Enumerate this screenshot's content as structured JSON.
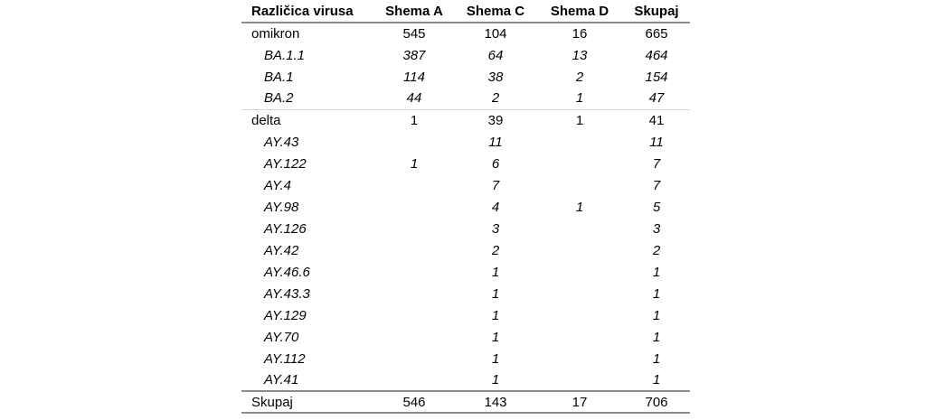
{
  "page": {
    "background_color": "#ffffff",
    "text_color": "#000000",
    "rule_color_strong": "#8c8c8c",
    "rule_color_light": "#d4d4d4"
  },
  "table": {
    "columns": [
      {
        "label": "Različica virusa",
        "align": "left"
      },
      {
        "label": "Shema A",
        "align": "center"
      },
      {
        "label": "Shema C",
        "align": "center"
      },
      {
        "label": "Shema D",
        "align": "center"
      },
      {
        "label": "Skupaj",
        "align": "center"
      }
    ],
    "rows": [
      {
        "label": "omikron",
        "style": "group",
        "values": [
          "545",
          "104",
          "16",
          "665"
        ]
      },
      {
        "label": "BA.1.1",
        "style": "sub",
        "values": [
          "387",
          "64",
          "13",
          "464"
        ]
      },
      {
        "label": "BA.1",
        "style": "sub",
        "values": [
          "114",
          "38",
          "2",
          "154"
        ]
      },
      {
        "label": "BA.2",
        "style": "sub",
        "values": [
          "44",
          "2",
          "1",
          "47"
        ]
      },
      {
        "label": "delta",
        "style": "group",
        "values": [
          "1",
          "39",
          "1",
          "41"
        ]
      },
      {
        "label": "AY.43",
        "style": "sub",
        "values": [
          "",
          "11",
          "",
          "11"
        ]
      },
      {
        "label": "AY.122",
        "style": "sub",
        "values": [
          "1",
          "6",
          "",
          "7"
        ]
      },
      {
        "label": "AY.4",
        "style": "sub",
        "values": [
          "",
          "7",
          "",
          "7"
        ]
      },
      {
        "label": "AY.98",
        "style": "sub",
        "values": [
          "",
          "4",
          "1",
          "5"
        ]
      },
      {
        "label": "AY.126",
        "style": "sub",
        "values": [
          "",
          "3",
          "",
          "3"
        ]
      },
      {
        "label": "AY.42",
        "style": "sub",
        "values": [
          "",
          "2",
          "",
          "2"
        ]
      },
      {
        "label": "AY.46.6",
        "style": "sub",
        "values": [
          "",
          "1",
          "",
          "1"
        ]
      },
      {
        "label": "AY.43.3",
        "style": "sub",
        "values": [
          "",
          "1",
          "",
          "1"
        ]
      },
      {
        "label": "AY.129",
        "style": "sub",
        "values": [
          "",
          "1",
          "",
          "1"
        ]
      },
      {
        "label": "AY.70",
        "style": "sub",
        "values": [
          "",
          "1",
          "",
          "1"
        ]
      },
      {
        "label": "AY.112",
        "style": "sub",
        "values": [
          "",
          "1",
          "",
          "1"
        ]
      },
      {
        "label": "AY.41",
        "style": "sub",
        "values": [
          "",
          "1",
          "",
          "1"
        ]
      },
      {
        "label": "Skupaj",
        "style": "total",
        "values": [
          "546",
          "143",
          "17",
          "706"
        ]
      }
    ]
  }
}
